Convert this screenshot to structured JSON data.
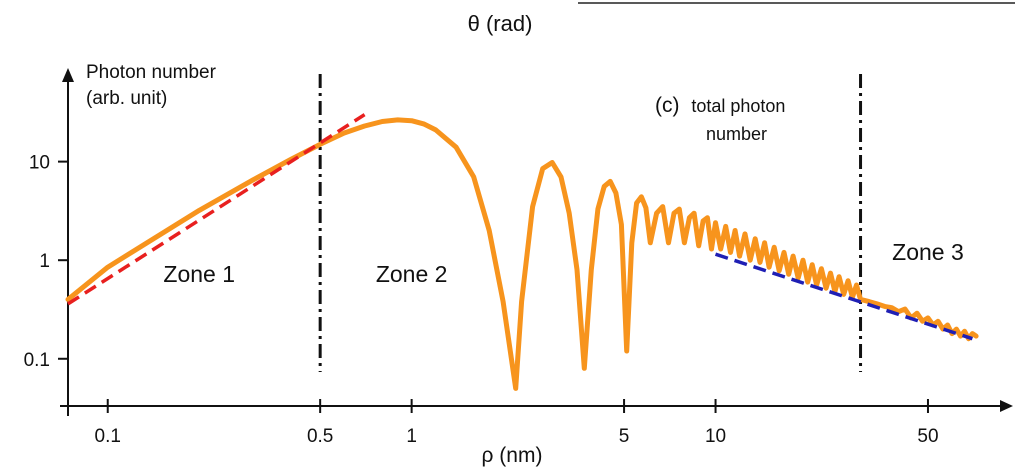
{
  "chart_data": {
    "type": "line",
    "title": "",
    "top_label": "θ (rad)",
    "panel_label": "(c)",
    "panel_text": [
      "total photon",
      "number"
    ],
    "xlabel": "ρ (nm)",
    "ylabel": [
      "Photon number",
      "(arb. unit)"
    ],
    "x_scale": "log",
    "y_scale": "log",
    "xlim": [
      0.074,
      80
    ],
    "ylim": [
      0.04,
      85
    ],
    "x_ticks": [
      {
        "value": 0.1,
        "label": "0.1"
      },
      {
        "value": 0.5,
        "label": "0.5"
      },
      {
        "value": 1,
        "label": "1"
      },
      {
        "value": 5,
        "label": "5"
      },
      {
        "value": 10,
        "label": "10"
      },
      {
        "value": 50,
        "label": "50"
      }
    ],
    "y_ticks": [
      {
        "value": 0.1,
        "label": "0.1"
      },
      {
        "value": 1,
        "label": "1"
      },
      {
        "value": 10,
        "label": "10"
      }
    ],
    "zone_boundaries": [
      0.5,
      30
    ],
    "zones": [
      {
        "label": "Zone 1",
        "x": 0.2,
        "y": 0.6
      },
      {
        "label": "Zone 2",
        "x": 1.0,
        "y": 0.6
      },
      {
        "label": "Zone 3",
        "x": 50,
        "y": 1.0
      }
    ],
    "series": [
      {
        "color": "#f7941d",
        "style": "solid",
        "x": [
          0.074,
          0.1,
          0.2,
          0.3,
          0.4,
          0.5,
          0.6,
          0.7,
          0.8,
          0.9,
          1.0,
          1.1,
          1.2,
          1.4,
          1.6,
          1.8,
          2.0,
          2.2,
          2.3,
          2.5,
          2.7,
          2.9,
          3.1,
          3.3,
          3.5,
          3.7,
          3.9,
          4.1,
          4.3,
          4.5,
          4.7,
          4.9,
          5.1,
          5.3,
          5.5,
          5.7,
          5.9,
          6.1,
          6.4,
          6.7,
          7.0,
          7.3,
          7.6,
          7.9,
          8.2,
          8.5,
          8.8,
          9.1,
          9.4,
          9.7,
          10,
          10.4,
          10.8,
          11.2,
          11.6,
          12,
          12.5,
          13,
          13.5,
          14,
          14.5,
          15,
          15.6,
          16.2,
          16.8,
          17.4,
          18,
          18.7,
          19.4,
          20.1,
          20.8,
          21.5,
          22.3,
          23.1,
          23.9,
          24.7,
          25.5,
          26.4,
          27.3,
          28.2,
          29.1,
          30,
          32,
          34,
          36,
          38,
          40,
          42,
          44,
          46,
          48,
          50,
          52,
          54,
          56,
          58,
          60,
          62,
          64,
          66,
          68,
          70,
          72
        ],
        "y": [
          0.4,
          0.85,
          3.2,
          6.5,
          10.5,
          15,
          19.5,
          23,
          25.5,
          26.5,
          26,
          24,
          21,
          14,
          7,
          2,
          0.38,
          0.05,
          0.38,
          3.5,
          8.5,
          9.8,
          7,
          3,
          0.8,
          0.08,
          0.8,
          3.3,
          5.6,
          6.3,
          4.8,
          2.3,
          0.12,
          1.5,
          3.8,
          4.4,
          3.4,
          1.5,
          3.0,
          3.5,
          1.5,
          3.0,
          3.3,
          1.5,
          2.7,
          3.0,
          1.4,
          2.5,
          2.7,
          1.3,
          2.4,
          1.3,
          2.2,
          1.2,
          2.0,
          1.1,
          1.85,
          1.0,
          1.65,
          0.95,
          1.5,
          0.85,
          1.35,
          0.78,
          1.2,
          0.72,
          1.1,
          0.66,
          1.0,
          0.6,
          0.9,
          0.56,
          0.82,
          0.52,
          0.74,
          0.48,
          0.68,
          0.45,
          0.62,
          0.42,
          0.56,
          0.4,
          0.38,
          0.36,
          0.34,
          0.33,
          0.3,
          0.32,
          0.26,
          0.29,
          0.24,
          0.26,
          0.22,
          0.24,
          0.2,
          0.22,
          0.18,
          0.2,
          0.17,
          0.19,
          0.16,
          0.18,
          0.17
        ]
      },
      {
        "color": "#e8201f",
        "style": "dashed",
        "x": [
          0.074,
          0.7
        ],
        "y": [
          0.36,
          30
        ]
      },
      {
        "color": "#1f1fb4",
        "style": "dashed",
        "x": [
          10,
          70
        ],
        "y": [
          1.15,
          0.16
        ]
      }
    ]
  }
}
